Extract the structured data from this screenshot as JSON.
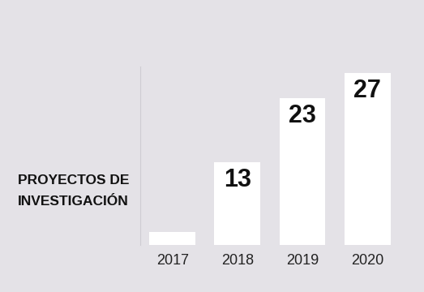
{
  "chart_data": {
    "type": "bar",
    "title": "PROYECTOS DE INVESTIGACIÓN",
    "categories": [
      "2017",
      "2018",
      "2019",
      "2020"
    ],
    "values": [
      2,
      13,
      23,
      27
    ],
    "value_labels": [
      null,
      "13",
      "23",
      "27"
    ],
    "data_labels": true,
    "color": "#ffffff",
    "ylim": [
      0,
      28
    ],
    "yticks": [],
    "grid": false,
    "tick_labels": "x"
  }
}
